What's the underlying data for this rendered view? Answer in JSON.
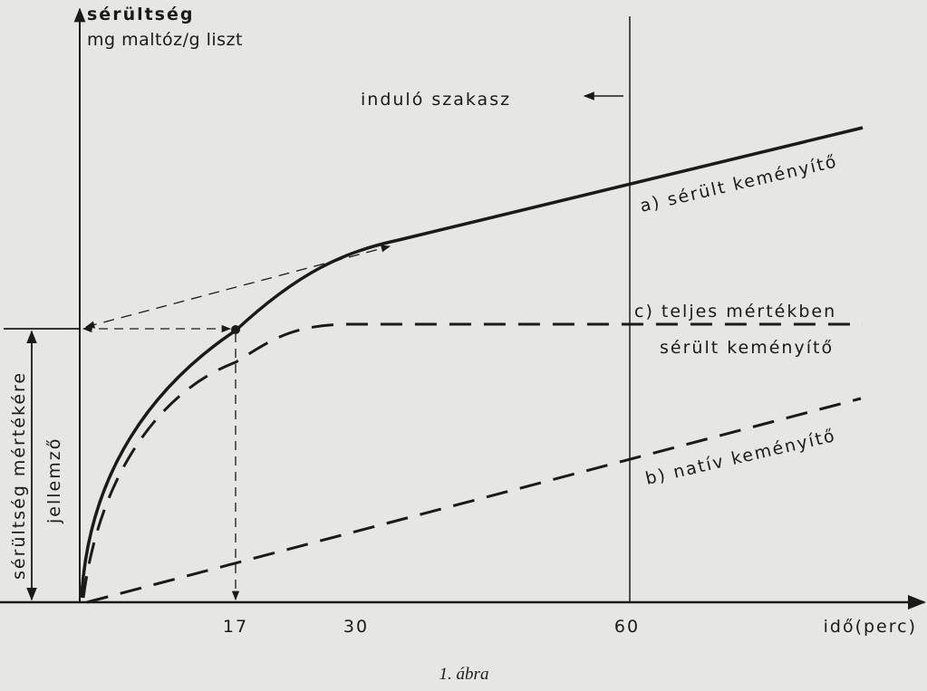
{
  "axes": {
    "y_title": "sérültség",
    "y_unit": "mg maltóz/g liszt",
    "x_title": "idő(perc)",
    "x_ticks": [
      "17",
      "30",
      "60"
    ]
  },
  "annotations": {
    "initial_phase": "induló szakasz",
    "damage_measure_1": "sérültség mértékére",
    "damage_measure_2": "jellemző"
  },
  "curves": {
    "a": "a) sérült keményítő",
    "c_1": "c) teljes mértékben",
    "c_2": "sérült keményítő",
    "b": "b) natív keményítő"
  },
  "caption": "1. ábra"
}
